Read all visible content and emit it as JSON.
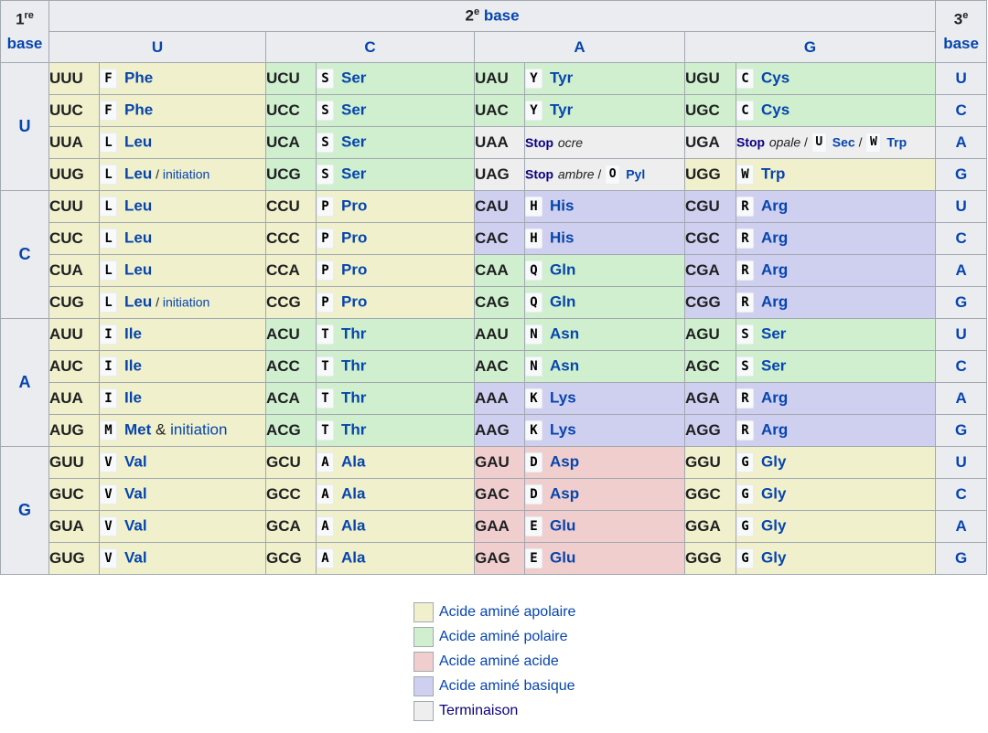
{
  "header": {
    "first_base_num": "1",
    "first_base_sup": "re",
    "first_base_word": "base",
    "second_base_num": "2",
    "second_base_sup": "e",
    "second_base_word": "base",
    "third_base_num": "3",
    "third_base_sup": "e",
    "third_base_word": "base",
    "columns": [
      "U",
      "C",
      "A",
      "G"
    ]
  },
  "rows": [
    {
      "first": "U",
      "third": [
        "U",
        "C",
        "A",
        "G"
      ]
    },
    {
      "first": "C",
      "third": [
        "U",
        "C",
        "A",
        "G"
      ]
    },
    {
      "first": "A",
      "third": [
        "U",
        "C",
        "A",
        "G"
      ]
    },
    {
      "first": "G",
      "third": [
        "U",
        "C",
        "A",
        "G"
      ]
    }
  ],
  "cells": [
    [
      {
        "codon": "UUU",
        "letter": "F",
        "name": "Phe",
        "cls": "ap"
      },
      {
        "codon": "UCU",
        "letter": "S",
        "name": "Ser",
        "cls": "po"
      },
      {
        "codon": "UAU",
        "letter": "Y",
        "name": "Tyr",
        "cls": "po"
      },
      {
        "codon": "UGU",
        "letter": "C",
        "name": "Cys",
        "cls": "po"
      }
    ],
    [
      {
        "codon": "UUC",
        "letter": "F",
        "name": "Phe",
        "cls": "ap"
      },
      {
        "codon": "UCC",
        "letter": "S",
        "name": "Ser",
        "cls": "po"
      },
      {
        "codon": "UAC",
        "letter": "Y",
        "name": "Tyr",
        "cls": "po"
      },
      {
        "codon": "UGC",
        "letter": "C",
        "name": "Cys",
        "cls": "po"
      }
    ],
    [
      {
        "codon": "UUA",
        "letter": "L",
        "name": "Leu",
        "cls": "ap"
      },
      {
        "codon": "UCA",
        "letter": "S",
        "name": "Ser",
        "cls": "po"
      },
      {
        "codon": "UAA",
        "stop": "Stop",
        "stop_kind": "ocre",
        "cls": "st"
      },
      {
        "codon": "UGA",
        "stop": "Stop",
        "stop_kind": "opale",
        "cls": "st",
        "extra": [
          {
            "letter": "U",
            "name": "Sec"
          },
          {
            "letter": "W",
            "name": "Trp"
          }
        ]
      }
    ],
    [
      {
        "codon": "UUG",
        "letter": "L",
        "name": "Leu",
        "note": "initiation",
        "cls": "ap"
      },
      {
        "codon": "UCG",
        "letter": "S",
        "name": "Ser",
        "cls": "po"
      },
      {
        "codon": "UAG",
        "stop": "Stop",
        "stop_kind": "ambre",
        "cls": "st",
        "extra": [
          {
            "letter": "O",
            "name": "Pyl"
          }
        ]
      },
      {
        "codon": "UGG",
        "letter": "W",
        "name": "Trp",
        "cls": "ap"
      }
    ],
    [
      {
        "codon": "CUU",
        "letter": "L",
        "name": "Leu",
        "cls": "ap"
      },
      {
        "codon": "CCU",
        "letter": "P",
        "name": "Pro",
        "cls": "ap"
      },
      {
        "codon": "CAU",
        "letter": "H",
        "name": "His",
        "cls": "ba"
      },
      {
        "codon": "CGU",
        "letter": "R",
        "name": "Arg",
        "cls": "ba"
      }
    ],
    [
      {
        "codon": "CUC",
        "letter": "L",
        "name": "Leu",
        "cls": "ap"
      },
      {
        "codon": "CCC",
        "letter": "P",
        "name": "Pro",
        "cls": "ap"
      },
      {
        "codon": "CAC",
        "letter": "H",
        "name": "His",
        "cls": "ba"
      },
      {
        "codon": "CGC",
        "letter": "R",
        "name": "Arg",
        "cls": "ba"
      }
    ],
    [
      {
        "codon": "CUA",
        "letter": "L",
        "name": "Leu",
        "cls": "ap"
      },
      {
        "codon": "CCA",
        "letter": "P",
        "name": "Pro",
        "cls": "ap"
      },
      {
        "codon": "CAA",
        "letter": "Q",
        "name": "Gln",
        "cls": "po"
      },
      {
        "codon": "CGA",
        "letter": "R",
        "name": "Arg",
        "cls": "ba"
      }
    ],
    [
      {
        "codon": "CUG",
        "letter": "L",
        "name": "Leu",
        "note": "initiation",
        "cls": "ap"
      },
      {
        "codon": "CCG",
        "letter": "P",
        "name": "Pro",
        "cls": "ap"
      },
      {
        "codon": "CAG",
        "letter": "Q",
        "name": "Gln",
        "cls": "po"
      },
      {
        "codon": "CGG",
        "letter": "R",
        "name": "Arg",
        "cls": "ba"
      }
    ],
    [
      {
        "codon": "AUU",
        "letter": "I",
        "name": "Ile",
        "cls": "ap"
      },
      {
        "codon": "ACU",
        "letter": "T",
        "name": "Thr",
        "cls": "po"
      },
      {
        "codon": "AAU",
        "letter": "N",
        "name": "Asn",
        "cls": "po"
      },
      {
        "codon": "AGU",
        "letter": "S",
        "name": "Ser",
        "cls": "po"
      }
    ],
    [
      {
        "codon": "AUC",
        "letter": "I",
        "name": "Ile",
        "cls": "ap"
      },
      {
        "codon": "ACC",
        "letter": "T",
        "name": "Thr",
        "cls": "po"
      },
      {
        "codon": "AAC",
        "letter": "N",
        "name": "Asn",
        "cls": "po"
      },
      {
        "codon": "AGC",
        "letter": "S",
        "name": "Ser",
        "cls": "po"
      }
    ],
    [
      {
        "codon": "AUA",
        "letter": "I",
        "name": "Ile",
        "cls": "ap"
      },
      {
        "codon": "ACA",
        "letter": "T",
        "name": "Thr",
        "cls": "po"
      },
      {
        "codon": "AAA",
        "letter": "K",
        "name": "Lys",
        "cls": "ba"
      },
      {
        "codon": "AGA",
        "letter": "R",
        "name": "Arg",
        "cls": "ba"
      }
    ],
    [
      {
        "codon": "AUG",
        "letter": "M",
        "name": "Met",
        "note_big": "initiation",
        "cls": "ap"
      },
      {
        "codon": "ACG",
        "letter": "T",
        "name": "Thr",
        "cls": "po"
      },
      {
        "codon": "AAG",
        "letter": "K",
        "name": "Lys",
        "cls": "ba"
      },
      {
        "codon": "AGG",
        "letter": "R",
        "name": "Arg",
        "cls": "ba"
      }
    ],
    [
      {
        "codon": "GUU",
        "letter": "V",
        "name": "Val",
        "cls": "ap"
      },
      {
        "codon": "GCU",
        "letter": "A",
        "name": "Ala",
        "cls": "ap"
      },
      {
        "codon": "GAU",
        "letter": "D",
        "name": "Asp",
        "cls": "ac"
      },
      {
        "codon": "GGU",
        "letter": "G",
        "name": "Gly",
        "cls": "ap"
      }
    ],
    [
      {
        "codon": "GUC",
        "letter": "V",
        "name": "Val",
        "cls": "ap"
      },
      {
        "codon": "GCC",
        "letter": "A",
        "name": "Ala",
        "cls": "ap"
      },
      {
        "codon": "GAC",
        "letter": "D",
        "name": "Asp",
        "cls": "ac"
      },
      {
        "codon": "GGC",
        "letter": "G",
        "name": "Gly",
        "cls": "ap"
      }
    ],
    [
      {
        "codon": "GUA",
        "letter": "V",
        "name": "Val",
        "cls": "ap"
      },
      {
        "codon": "GCA",
        "letter": "A",
        "name": "Ala",
        "cls": "ap"
      },
      {
        "codon": "GAA",
        "letter": "E",
        "name": "Glu",
        "cls": "ac"
      },
      {
        "codon": "GGA",
        "letter": "G",
        "name": "Gly",
        "cls": "ap"
      }
    ],
    [
      {
        "codon": "GUG",
        "letter": "V",
        "name": "Val",
        "cls": "ap"
      },
      {
        "codon": "GCG",
        "letter": "A",
        "name": "Ala",
        "cls": "ap"
      },
      {
        "codon": "GAG",
        "letter": "E",
        "name": "Glu",
        "cls": "ac"
      },
      {
        "codon": "GGG",
        "letter": "G",
        "name": "Gly",
        "cls": "ap"
      }
    ]
  ],
  "legend": [
    {
      "label": "Acide aminé apolaire",
      "color": "#f0f0cc"
    },
    {
      "label": "Acide aminé polaire",
      "color": "#cfefcf"
    },
    {
      "label": "Acide aminé acide",
      "color": "#f0cece"
    },
    {
      "label": "Acide aminé basique",
      "color": "#cfcff0"
    },
    {
      "label": "Terminaison",
      "color": "#eeeeee"
    }
  ],
  "colors": {
    "apolaire": "#f0f0cc",
    "polaire": "#cfefcf",
    "acide": "#f0cece",
    "basique": "#cfcff0",
    "terminaison": "#eeeeee",
    "link": "#0645ad"
  }
}
